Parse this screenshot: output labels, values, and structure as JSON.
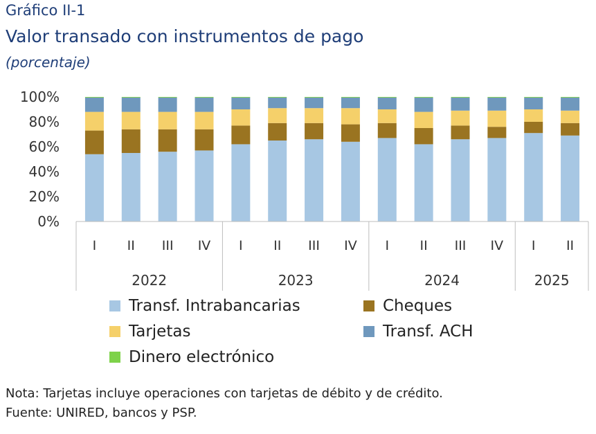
{
  "header": {
    "figure_label": "Gráfico II-1",
    "title": "Valor transado con instrumentos de pago",
    "subtitle": "(porcentaje)"
  },
  "footer": {
    "note": "Nota: Tarjetas incluye operaciones con tarjetas de débito y de crédito.",
    "source": "Fuente: UNIRED, bancos y PSP."
  },
  "colors": {
    "Transf. Intrabancarias": "#a7c7e3",
    "Cheques": "#9a7421",
    "Tarjetas": "#f5d06a",
    "Transf. ACH": "#6f98bd",
    "Dinero electrónico": "#7ed24a"
  },
  "chart_data": {
    "type": "bar",
    "stacked": true,
    "title": "Valor transado con instrumentos de pago",
    "ylabel": "",
    "ylim": [
      0,
      100
    ],
    "yticks": [
      "0%",
      "20%",
      "40%",
      "60%",
      "80%",
      "100%"
    ],
    "categories": [
      "I",
      "II",
      "III",
      "IV",
      "I",
      "II",
      "III",
      "IV",
      "I",
      "II",
      "III",
      "IV",
      "I",
      "II"
    ],
    "groups": [
      {
        "label": "2022",
        "count": 4
      },
      {
        "label": "2023",
        "count": 4
      },
      {
        "label": "2024",
        "count": 4
      },
      {
        "label": "2025",
        "count": 2
      }
    ],
    "series": [
      {
        "name": "Transf. Intrabancarias",
        "values": [
          54,
          55,
          56,
          57,
          62,
          65,
          66,
          64,
          67,
          62,
          66,
          67,
          71,
          69
        ]
      },
      {
        "name": "Cheques",
        "values": [
          19,
          19,
          18,
          17,
          15,
          14,
          13,
          14,
          12,
          13,
          11,
          9,
          9,
          10
        ]
      },
      {
        "name": "Tarjetas",
        "values": [
          15,
          14,
          14,
          14,
          13,
          12,
          12,
          13,
          11,
          13,
          12,
          13,
          10,
          10
        ]
      },
      {
        "name": "Transf. ACH",
        "values": [
          11.5,
          11.5,
          11.5,
          11.5,
          9.5,
          8.5,
          8.5,
          8.5,
          9.5,
          11.5,
          10.5,
          10.5,
          9.5,
          10.5
        ]
      },
      {
        "name": "Dinero electrónico",
        "values": [
          0.5,
          0.5,
          0.5,
          0.5,
          0.5,
          0.5,
          0.5,
          0.5,
          0.5,
          0.5,
          0.5,
          0.5,
          0.5,
          0.5
        ]
      }
    ],
    "legend": [
      "Transf. Intrabancarias",
      "Cheques",
      "Tarjetas",
      "Transf. ACH",
      "Dinero electrónico"
    ],
    "legend_position": "bottom",
    "grid": false
  }
}
